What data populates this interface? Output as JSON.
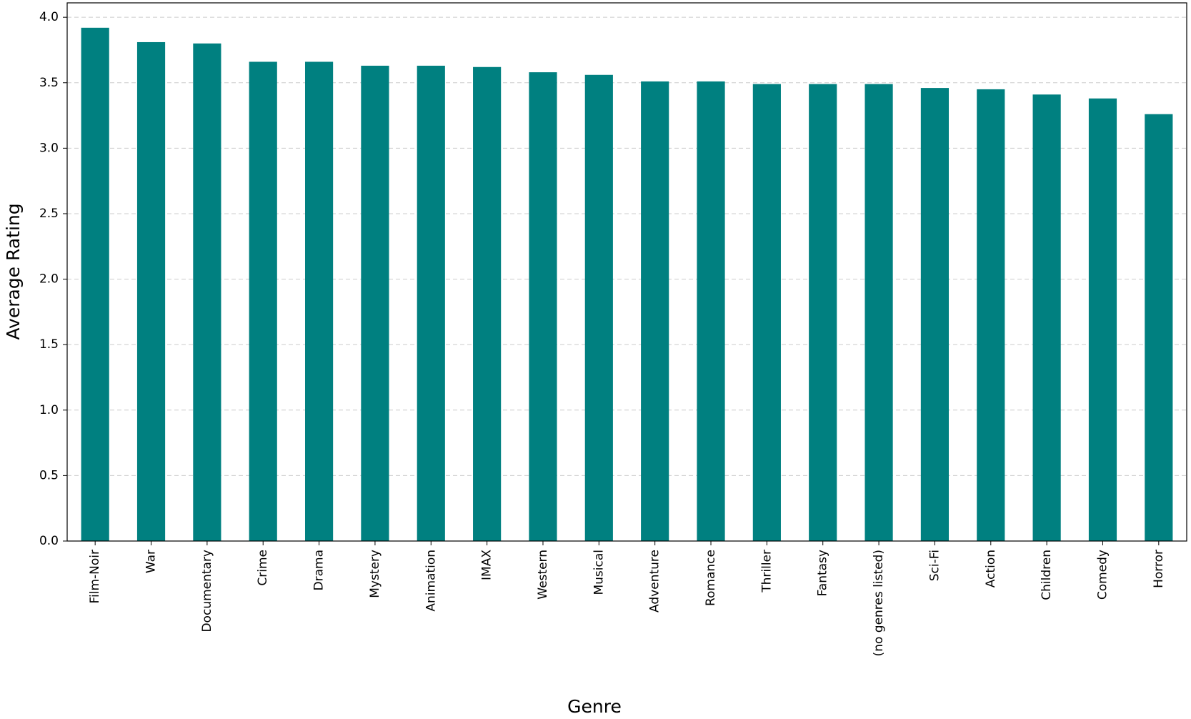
{
  "chart_data": {
    "type": "bar",
    "x_label": "Genre",
    "y_label": "Average Rating",
    "categories": [
      "Film-Noir",
      "War",
      "Documentary",
      "Crime",
      "Drama",
      "Mystery",
      "Animation",
      "IMAX",
      "Western",
      "Musical",
      "Adventure",
      "Romance",
      "Thriller",
      "Fantasy",
      "(no genres listed)",
      "Sci-Fi",
      "Action",
      "Children",
      "Comedy",
      "Horror"
    ],
    "values": [
      3.92,
      3.81,
      3.8,
      3.66,
      3.66,
      3.63,
      3.63,
      3.62,
      3.58,
      3.56,
      3.51,
      3.51,
      3.49,
      3.49,
      3.49,
      3.46,
      3.45,
      3.41,
      3.38,
      3.26
    ],
    "color": "#008080",
    "ylim": [
      0,
      4.11
    ],
    "yticks": [
      {
        "value": 0,
        "label": "0.0"
      },
      0.5,
      {
        "value": 1,
        "label": "1.0"
      },
      1.5,
      {
        "value": 2,
        "label": "2.0"
      },
      2.5,
      {
        "value": 3,
        "label": "3.0"
      },
      3.5,
      {
        "value": 4,
        "label": "4.0"
      }
    ],
    "grid": true
  }
}
